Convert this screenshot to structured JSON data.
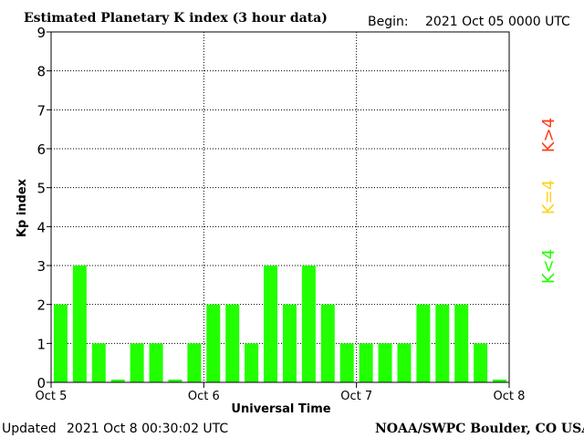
{
  "header": {
    "title": "Estimated Planetary K index (3 hour data)",
    "begin_label": "Begin:",
    "begin_value": "2021 Oct 05 0000 UTC"
  },
  "footer": {
    "updated_label": "Updated",
    "updated_value": "2021 Oct  8 00:30:02 UTC",
    "credit": "NOAA/SWPC Boulder, CO USA"
  },
  "legend": {
    "items": [
      {
        "label": "K>4",
        "color": "#ff3b1a"
      },
      {
        "label": "K=4",
        "color": "#ffd21a"
      },
      {
        "label": "K<4",
        "color": "#22ff00"
      }
    ]
  },
  "chart_data": {
    "type": "bar",
    "title": "Estimated Planetary K index (3 hour data)",
    "xlabel": "Universal Time",
    "ylabel": "Kp index",
    "ylim": [
      0,
      9
    ],
    "yticks": [
      0,
      1,
      2,
      3,
      4,
      5,
      6,
      7,
      8,
      9
    ],
    "x_ticks": [
      "Oct 5",
      "Oct 6",
      "Oct 7",
      "Oct 8"
    ],
    "grid": true,
    "bar_color": "#22ff00",
    "series": [
      {
        "values": [
          2,
          3,
          1,
          0,
          1,
          1,
          0,
          1,
          2,
          2,
          1,
          3,
          2,
          3,
          2,
          1,
          1,
          1,
          1,
          2,
          2,
          2,
          1,
          0
        ]
      }
    ]
  }
}
